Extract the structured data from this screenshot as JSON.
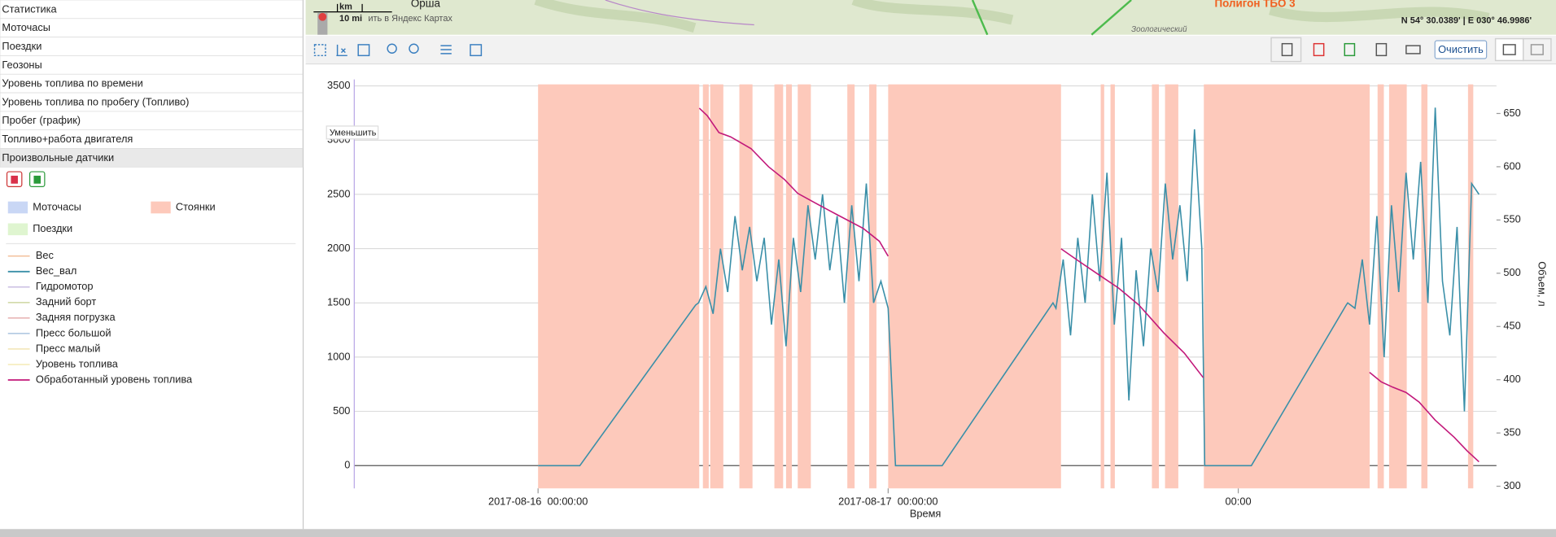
{
  "menu": [
    "Статистика",
    "Моточасы",
    "Поездки",
    "Геозоны",
    "Уровень топлива по времени",
    "Уровень топлива по пробегу (Топливо)",
    "Пробег (график)",
    "Топливо+работа двигателя",
    "Произвольные датчики"
  ],
  "map": {
    "scale_km": "km",
    "scale_mi": "10 mi",
    "yandex_link": "ить в Яндекс Картах",
    "city": "Орша",
    "poi": "Полигон ТБО 3",
    "place": "Зоологический",
    "coords": "N 54° 30.0389' | E 030° 46.9986'"
  },
  "toolbar": {
    "clear_button": "Очистить"
  },
  "tooltip": "Уменьшить",
  "chart_data": {
    "type": "line",
    "x_label": "Время",
    "y2_label": "Объем, л",
    "xlim": [
      -12.6,
      65.7
    ],
    "xticks": [
      {
        "value": 0,
        "label": "2017-08-16  00:00:00"
      },
      {
        "value": 24,
        "label": "2017-08-17  00:00:00"
      },
      {
        "value": 48,
        "label": "00:00"
      }
    ],
    "ylim": [
      -210,
      3560
    ],
    "yticks": [
      0,
      500,
      1000,
      1500,
      2000,
      2500,
      3000,
      3500
    ],
    "y2lim": [
      298,
      682
    ],
    "y2ticks": [
      300,
      350,
      400,
      450,
      500,
      550,
      600,
      650
    ],
    "grid": true,
    "areas": [
      {
        "name": "Моточасы",
        "color": "#c9d7f5"
      },
      {
        "name": "Стоянки",
        "color": "#fdc9bb",
        "ranges": [
          [
            0,
            11.05
          ],
          [
            11.3,
            11.7
          ],
          [
            11.8,
            12.7
          ],
          [
            13.8,
            14.7
          ],
          [
            16.2,
            16.8
          ],
          [
            17.0,
            17.4
          ],
          [
            17.8,
            18.7
          ],
          [
            21.2,
            21.7
          ],
          [
            22.7,
            23.2
          ],
          [
            24.0,
            35.85
          ],
          [
            38.57,
            38.81
          ],
          [
            39.24,
            39.54
          ],
          [
            42.08,
            42.56
          ],
          [
            42.98,
            43.89
          ],
          [
            45.64,
            57.01
          ],
          [
            57.55,
            57.98
          ],
          [
            58.34,
            59.55
          ],
          [
            60.55,
            60.97
          ],
          [
            63.75,
            64.11
          ]
        ]
      },
      {
        "name": "Поездки",
        "color": "#dff5d0"
      }
    ],
    "series": [
      {
        "name": "Вес",
        "color": "#f0b48a",
        "hidden": true
      },
      {
        "name": "Вес_вал",
        "color": "#3a8fa8",
        "x": [
          0,
          2.86,
          10.8,
          11.0,
          11.5,
          12.0,
          12.5,
          13.0,
          13.5,
          14.0,
          14.5,
          15.0,
          15.5,
          16.0,
          16.5,
          17.0,
          17.5,
          18.0,
          18.5,
          19.0,
          19.5,
          20.0,
          20.5,
          21.0,
          21.5,
          22.0,
          22.5,
          23.0,
          23.5,
          24.0,
          24.5,
          27.7,
          35.3,
          35.5,
          36.0,
          36.5,
          37.0,
          37.5,
          38.0,
          38.5,
          39.0,
          39.5,
          40.0,
          40.5,
          41.0,
          41.5,
          42.0,
          42.5,
          43.0,
          43.5,
          44.0,
          44.5,
          45.0,
          45.5,
          45.7,
          48.9,
          55.4,
          55.5,
          56.0,
          56.5,
          57.0,
          57.5,
          58.0,
          58.5,
          59.0,
          59.5,
          60.0,
          60.5,
          61.0,
          61.5,
          62.0,
          62.5,
          63.0,
          63.5,
          64.0,
          64.5
        ],
        "values": [
          0,
          0,
          1480,
          1500,
          1650,
          1400,
          2000,
          1600,
          2300,
          1800,
          2200,
          1700,
          2100,
          1300,
          1900,
          1100,
          2100,
          1600,
          2400,
          1900,
          2500,
          1800,
          2300,
          1500,
          2400,
          1700,
          2600,
          1500,
          1700,
          1450,
          0,
          0,
          1500,
          1450,
          1900,
          1200,
          2100,
          1500,
          2500,
          1700,
          2700,
          1300,
          2100,
          600,
          1800,
          1100,
          2000,
          1600,
          2600,
          1900,
          2400,
          1700,
          3100,
          2000,
          0,
          0,
          1480,
          1500,
          1450,
          1900,
          1300,
          2300,
          1000,
          2400,
          1600,
          2700,
          1900,
          2800,
          1500,
          3300,
          1700,
          1200,
          2200,
          500,
          2600,
          2500
        ]
      },
      {
        "name": "Гидромотор",
        "color": "#b9a9d9",
        "hidden": true
      },
      {
        "name": "Задний борт",
        "color": "#c4cf8f",
        "hidden": true
      },
      {
        "name": "Задняя погрузка",
        "color": "#e0a0a0",
        "hidden": true
      },
      {
        "name": "Пресс большой",
        "color": "#9ab8d8",
        "hidden": true
      },
      {
        "name": "Пресс малый",
        "color": "#eedc9a",
        "hidden": true
      },
      {
        "name": "Уровень топлива",
        "color": "#f2e6a6",
        "hidden": true
      },
      {
        "name": "Обработанный уровень топлива",
        "color": "#c2187a",
        "axis": "y2",
        "x": [
          11.05,
          11.6,
          12.4,
          13.2,
          14.6,
          15.8,
          16.9,
          17.8,
          19.0,
          20.5,
          22.3,
          23.4,
          24.0,
          null,
          35.85,
          37.0,
          38.5,
          39.8,
          41.2,
          42.9,
          44.3,
          45.6,
          null,
          57.0,
          57.8,
          58.6,
          59.5,
          60.4,
          61.5,
          62.8,
          63.7,
          64.5
        ],
        "values": [
          655,
          648,
          632,
          628,
          617,
          600,
          588,
          575,
          566,
          555,
          542,
          530,
          516,
          null,
          523,
          512,
          498,
          486,
          470,
          444,
          425,
          402,
          null,
          407,
          398,
          393,
          388,
          379,
          362,
          346,
          333,
          323
        ]
      }
    ]
  }
}
